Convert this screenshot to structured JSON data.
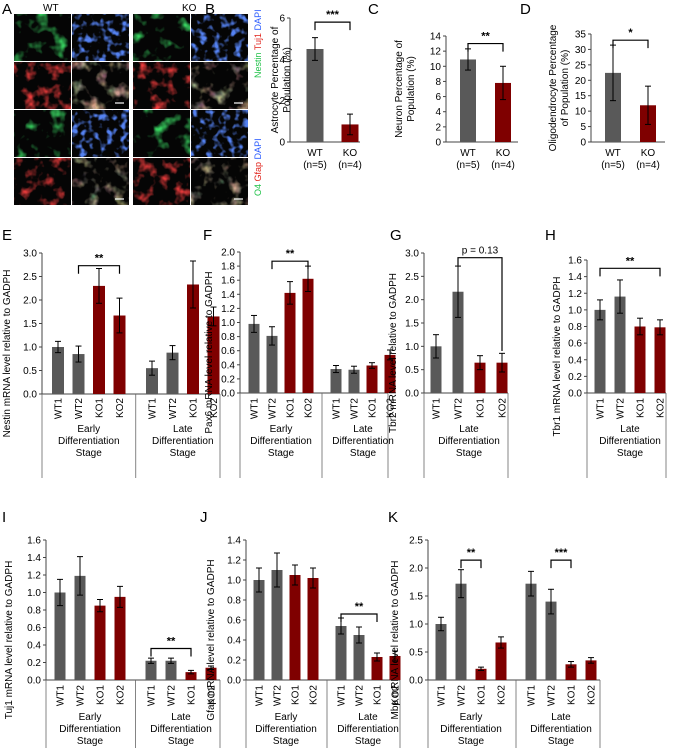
{
  "colors": {
    "wt": "#595959",
    "ko": "#7f0000",
    "green": "#22c24a",
    "red": "#e0221a",
    "blue": "#2b5cff"
  },
  "micrograph": {
    "panel": "A",
    "col_wt": "WT",
    "col_ko": "KO",
    "stain_top": {
      "green": "Nestin",
      "red": "Tuj1",
      "blue": "DAPI"
    },
    "stain_bottom": {
      "green": "O4",
      "red": "Gfap",
      "blue": "DAPI"
    }
  },
  "chart_data": [
    {
      "id": "B",
      "type": "bar",
      "panel": "B",
      "ylabel": [
        "Astrocyte Percentage of",
        "Population (%)"
      ],
      "ylim": [
        0,
        6
      ],
      "yticks": [
        0,
        2,
        4,
        6
      ],
      "decimals": 0,
      "groups": [
        {
          "labels": [
            "WT",
            "(n=5)"
          ],
          "cats": [
            0
          ]
        },
        {
          "labels": [
            "KO",
            "(n=4)"
          ],
          "cats": [
            1
          ]
        }
      ],
      "categories": [
        "WT",
        "KO"
      ],
      "values": [
        4.5,
        0.85
      ],
      "errors": [
        0.55,
        0.5
      ],
      "colors": [
        "wt",
        "ko"
      ],
      "sig": [
        {
          "from": 0,
          "to": 1,
          "y": 5.8,
          "label": "***"
        }
      ]
    },
    {
      "id": "C",
      "type": "bar",
      "panel": "C",
      "ylabel": [
        "Neuron Percentage of",
        "Population (%)"
      ],
      "ylim": [
        0,
        14
      ],
      "yticks": [
        0,
        2,
        4,
        6,
        8,
        10,
        12,
        14
      ],
      "decimals": 0,
      "groups": [
        {
          "labels": [
            "WT",
            "(n=5)"
          ],
          "cats": [
            0
          ]
        },
        {
          "labels": [
            "KO",
            "(n=4)"
          ],
          "cats": [
            1
          ]
        }
      ],
      "categories": [
        "WT",
        "KO"
      ],
      "values": [
        10.9,
        7.8
      ],
      "errors": [
        1.4,
        2.2
      ],
      "colors": [
        "wt",
        "ko"
      ],
      "sig": [
        {
          "from": 0,
          "to": 1,
          "y": 13.0,
          "label": "**"
        }
      ]
    },
    {
      "id": "D",
      "type": "bar",
      "panel": "D",
      "ylabel": [
        "Oligodendrocyte Percentage",
        "of Population (%)"
      ],
      "ylim": [
        0,
        35
      ],
      "yticks": [
        0,
        5,
        10,
        15,
        20,
        25,
        30,
        35
      ],
      "decimals": 0,
      "groups": [
        {
          "labels": [
            "WT",
            "(n=5)"
          ],
          "cats": [
            0
          ]
        },
        {
          "labels": [
            "KO",
            "(n=4)"
          ],
          "cats": [
            1
          ]
        }
      ],
      "categories": [
        "WT",
        "KO"
      ],
      "values": [
        22.4,
        11.9
      ],
      "errors": [
        9.0,
        6.2
      ],
      "colors": [
        "wt",
        "ko"
      ],
      "sig": [
        {
          "from": 0,
          "to": 1,
          "y": 33.0,
          "label": "*"
        }
      ]
    },
    {
      "id": "E",
      "type": "bar",
      "panel": "E",
      "ylabel": [
        "Nestin mRNA level relative to GADPH"
      ],
      "ylim": [
        0,
        3
      ],
      "yticks": [
        0,
        0.5,
        1,
        1.5,
        2,
        2.5,
        3
      ],
      "decimals": 1,
      "categories": [
        "WT1",
        "WT2",
        "KO1",
        "KO2",
        "WT1",
        "WT2",
        "KO1",
        "KO2"
      ],
      "values": [
        1.0,
        0.85,
        2.3,
        1.67,
        0.55,
        0.88,
        2.33,
        1.65
      ],
      "errors": [
        0.12,
        0.17,
        0.37,
        0.37,
        0.15,
        0.15,
        0.5,
        0.2
      ],
      "colors": [
        "wt",
        "wt",
        "ko",
        "ko",
        "wt",
        "wt",
        "ko",
        "ko"
      ],
      "groups": [
        {
          "labels": [
            "Early",
            "Differentiation",
            "Stage"
          ],
          "cats": [
            0,
            1,
            2,
            3
          ]
        },
        {
          "labels": [
            "Late",
            "Differentiation",
            "Stage"
          ],
          "cats": [
            4,
            5,
            6,
            7
          ]
        }
      ],
      "sig": [
        {
          "from": 1,
          "to": 3,
          "y": 2.73,
          "label": "**"
        }
      ]
    },
    {
      "id": "F",
      "type": "bar",
      "panel": "F",
      "ylabel": [
        "Pax6 mRNA level relative to GADPH"
      ],
      "ylim": [
        0,
        2
      ],
      "yticks": [
        0,
        0.2,
        0.4,
        0.6,
        0.8,
        1,
        1.2,
        1.4,
        1.6,
        1.8,
        2
      ],
      "decimals": 1,
      "categories": [
        "WT1",
        "WT2",
        "KO1",
        "KO2",
        "WT1",
        "WT2",
        "KO1",
        "KO2"
      ],
      "values": [
        0.98,
        0.81,
        1.42,
        1.62,
        0.34,
        0.33,
        0.39,
        0.54
      ],
      "errors": [
        0.12,
        0.13,
        0.16,
        0.18,
        0.05,
        0.05,
        0.04,
        0.07
      ],
      "colors": [
        "wt",
        "wt",
        "ko",
        "ko",
        "wt",
        "wt",
        "ko",
        "ko"
      ],
      "groups": [
        {
          "labels": [
            "Early",
            "Differentiation",
            "Stage"
          ],
          "cats": [
            0,
            1,
            2,
            3
          ]
        },
        {
          "labels": [
            "Late",
            "Differentiation",
            "Stage"
          ],
          "cats": [
            4,
            5,
            6,
            7
          ]
        }
      ],
      "sig": [
        {
          "from": 1,
          "to": 3,
          "y": 1.87,
          "label": "**"
        }
      ]
    },
    {
      "id": "G",
      "type": "bar",
      "panel": "G",
      "ylabel": [
        "Tbr2 mRNA level relative to GADPH"
      ],
      "ylim": [
        0,
        3
      ],
      "yticks": [
        0,
        0.5,
        1,
        1.5,
        2,
        2.5,
        3
      ],
      "decimals": 1,
      "categories": [
        "WT1",
        "WT2",
        "KO1",
        "KO2"
      ],
      "values": [
        1.0,
        2.17,
        0.65,
        0.65
      ],
      "errors": [
        0.25,
        0.55,
        0.15,
        0.2
      ],
      "colors": [
        "wt",
        "wt",
        "ko",
        "ko"
      ],
      "groups": [
        {
          "labels": [
            "Late",
            "Differentiation",
            "Stage"
          ],
          "cats": [
            0,
            1,
            2,
            3
          ]
        }
      ],
      "sig": [
        {
          "from": 1,
          "to": 3,
          "y": 2.9,
          "label": "p = 0.13",
          "drop_to": 0.9
        }
      ]
    },
    {
      "id": "H",
      "type": "bar",
      "panel": "H",
      "ylabel": [
        "Tbr1 mRNA level relative to GADPH"
      ],
      "ylim": [
        0,
        1.6
      ],
      "yticks": [
        0,
        0.2,
        0.4,
        0.6,
        0.8,
        1,
        1.2,
        1.4,
        1.6
      ],
      "decimals": 1,
      "categories": [
        "WT1",
        "WT2",
        "KO1",
        "KO2"
      ],
      "values": [
        1.0,
        1.16,
        0.8,
        0.79
      ],
      "errors": [
        0.12,
        0.2,
        0.1,
        0.09
      ],
      "colors": [
        "wt",
        "wt",
        "ko",
        "ko"
      ],
      "groups": [
        {
          "labels": [
            "Late",
            "Differentiation",
            "Stage"
          ],
          "cats": [
            0,
            1,
            2,
            3
          ]
        }
      ],
      "sig": [
        {
          "from": 0,
          "to": 3,
          "y": 1.5,
          "label": "**"
        }
      ]
    },
    {
      "id": "I",
      "type": "bar",
      "panel": "I",
      "ylabel": [
        "Tuj1 mRNA level relative to GADPH"
      ],
      "ylim": [
        0,
        1.6
      ],
      "yticks": [
        0,
        0.2,
        0.4,
        0.6,
        0.8,
        1,
        1.2,
        1.4,
        1.6
      ],
      "decimals": 1,
      "categories": [
        "WT1",
        "WT2",
        "KO1",
        "KO2",
        "WT1",
        "WT2",
        "KO1",
        "KO2"
      ],
      "values": [
        1.0,
        1.19,
        0.85,
        0.95,
        0.22,
        0.22,
        0.09,
        0.14
      ],
      "errors": [
        0.15,
        0.22,
        0.07,
        0.12,
        0.03,
        0.03,
        0.02,
        0.02
      ],
      "colors": [
        "wt",
        "wt",
        "ko",
        "ko",
        "wt",
        "wt",
        "ko",
        "ko"
      ],
      "groups": [
        {
          "labels": [
            "Early",
            "Differentiation",
            "Stage"
          ],
          "cats": [
            0,
            1,
            2,
            3
          ]
        },
        {
          "labels": [
            "Late",
            "Differentiation",
            "Stage"
          ],
          "cats": [
            4,
            5,
            6,
            7
          ]
        }
      ],
      "sig": [
        {
          "from": 4,
          "to": 6,
          "y": 0.36,
          "label": "**"
        }
      ]
    },
    {
      "id": "J",
      "type": "bar",
      "panel": "J",
      "ylabel": [
        "Gfap mRNA level relative to GADPH"
      ],
      "ylim": [
        0,
        1.4
      ],
      "yticks": [
        0,
        0.2,
        0.4,
        0.6,
        0.8,
        1,
        1.2,
        1.4
      ],
      "decimals": 1,
      "categories": [
        "WT1",
        "WT2",
        "KO1",
        "KO2",
        "WT1",
        "WT2",
        "KO1",
        "KO2"
      ],
      "values": [
        1.0,
        1.1,
        1.05,
        1.02,
        0.54,
        0.45,
        0.23,
        0.24
      ],
      "errors": [
        0.12,
        0.17,
        0.1,
        0.1,
        0.08,
        0.08,
        0.04,
        0.05
      ],
      "colors": [
        "wt",
        "wt",
        "ko",
        "ko",
        "wt",
        "wt",
        "ko",
        "ko"
      ],
      "groups": [
        {
          "labels": [
            "Early",
            "Differentiation",
            "Stage"
          ],
          "cats": [
            0,
            1,
            2,
            3
          ]
        },
        {
          "labels": [
            "Late",
            "Differentiation",
            "Stage"
          ],
          "cats": [
            4,
            5,
            6,
            7
          ]
        }
      ],
      "sig": [
        {
          "from": 4,
          "to": 6,
          "y": 0.66,
          "label": "**"
        }
      ]
    },
    {
      "id": "K",
      "type": "bar",
      "panel": "K",
      "ylabel": [
        "Mbp mRNA level relative to GADPH"
      ],
      "ylim": [
        0,
        2.5
      ],
      "yticks": [
        0,
        0.5,
        1,
        1.5,
        2,
        2.5
      ],
      "decimals": 1,
      "categories": [
        "WT1",
        "WT2",
        "KO1",
        "KO2",
        "WT1",
        "WT2",
        "KO1",
        "KO2"
      ],
      "values": [
        1.0,
        1.72,
        0.2,
        0.67,
        1.72,
        1.4,
        0.28,
        0.35
      ],
      "errors": [
        0.12,
        0.25,
        0.03,
        0.1,
        0.22,
        0.22,
        0.05,
        0.05
      ],
      "colors": [
        "wt",
        "wt",
        "ko",
        "ko",
        "wt",
        "wt",
        "ko",
        "ko"
      ],
      "groups": [
        {
          "labels": [
            "Early",
            "Differentiation",
            "Stage"
          ],
          "cats": [
            0,
            1,
            2,
            3
          ]
        },
        {
          "labels": [
            "Late",
            "Differentiation",
            "Stage"
          ],
          "cats": [
            4,
            5,
            6,
            7
          ]
        }
      ],
      "sig": [
        {
          "from": 1,
          "to": 2,
          "y": 2.14,
          "label": "**"
        },
        {
          "from": 5,
          "to": 6,
          "y": 2.14,
          "label": "***"
        }
      ]
    }
  ]
}
